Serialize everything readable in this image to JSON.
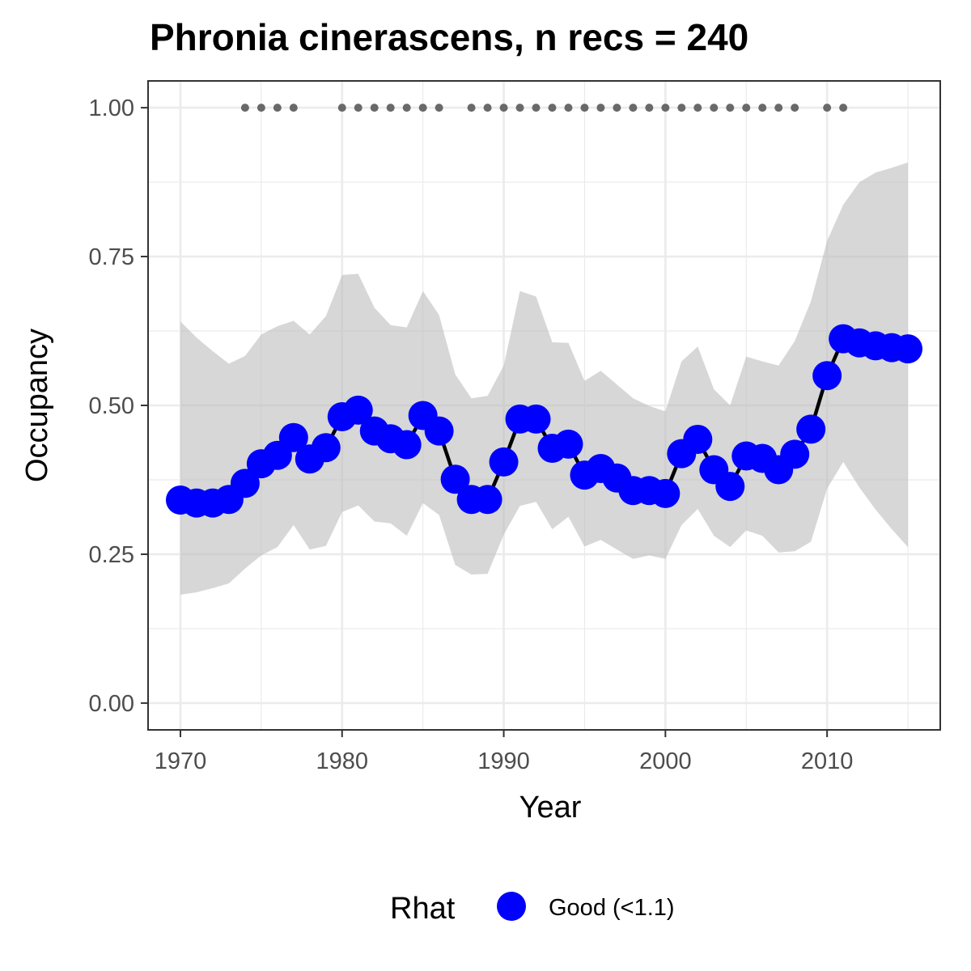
{
  "chart_data": {
    "type": "line",
    "title": "Phronia cinerascens, n recs = 240",
    "xlabel": "Year",
    "ylabel": "Occupancy",
    "xlim": [
      1968,
      2017
    ],
    "ylim": [
      -0.045,
      1.045
    ],
    "x_ticks": [
      1970,
      1980,
      1990,
      2000,
      2010
    ],
    "x_tick_labels": [
      "1970",
      "1980",
      "1990",
      "2000",
      "2010"
    ],
    "y_ticks": [
      0,
      0.25,
      0.5,
      0.75,
      1
    ],
    "y_tick_labels": [
      "0.00",
      "0.25",
      "0.50",
      "0.75",
      "1.00"
    ],
    "grid": true,
    "colors": {
      "line": "#000000",
      "points": "#0000ff",
      "ribbon": "#bfbfbf",
      "record_dots": "#696969",
      "grid": "#ebebeb",
      "panel_border": "#333333"
    },
    "x": [
      1970,
      1971,
      1972,
      1973,
      1974,
      1975,
      1976,
      1977,
      1978,
      1979,
      1980,
      1981,
      1982,
      1983,
      1984,
      1985,
      1986,
      1987,
      1988,
      1989,
      1990,
      1991,
      1992,
      1993,
      1994,
      1995,
      1996,
      1997,
      1998,
      1999,
      2000,
      2001,
      2002,
      2003,
      2004,
      2005,
      2006,
      2007,
      2008,
      2009,
      2010,
      2011,
      2012,
      2013,
      2014,
      2015
    ],
    "series": [
      {
        "values": [
          0.341,
          0.336,
          0.336,
          0.342,
          0.369,
          0.402,
          0.416,
          0.446,
          0.41,
          0.429,
          0.481,
          0.492,
          0.457,
          0.444,
          0.434,
          0.483,
          0.457,
          0.376,
          0.342,
          0.342,
          0.405,
          0.477,
          0.477,
          0.428,
          0.435,
          0.383,
          0.394,
          0.378,
          0.357,
          0.357,
          0.352,
          0.419,
          0.443,
          0.392,
          0.364,
          0.415,
          0.411,
          0.392,
          0.418,
          0.46,
          0.55,
          0.612,
          0.605,
          0.6,
          0.597,
          0.595
        ],
        "lower": [
          0.182,
          0.186,
          0.193,
          0.201,
          0.226,
          0.248,
          0.262,
          0.299,
          0.258,
          0.264,
          0.321,
          0.332,
          0.305,
          0.302,
          0.281,
          0.336,
          0.316,
          0.232,
          0.216,
          0.217,
          0.283,
          0.331,
          0.338,
          0.292,
          0.313,
          0.263,
          0.274,
          0.258,
          0.242,
          0.248,
          0.242,
          0.299,
          0.326,
          0.281,
          0.262,
          0.29,
          0.281,
          0.253,
          0.255,
          0.271,
          0.36,
          0.405,
          0.362,
          0.325,
          0.292,
          0.262
        ],
        "upper": [
          0.641,
          0.614,
          0.591,
          0.57,
          0.583,
          0.619,
          0.633,
          0.642,
          0.619,
          0.65,
          0.719,
          0.721,
          0.664,
          0.635,
          0.631,
          0.692,
          0.652,
          0.552,
          0.512,
          0.516,
          0.567,
          0.692,
          0.683,
          0.606,
          0.605,
          0.541,
          0.558,
          0.535,
          0.512,
          0.499,
          0.49,
          0.574,
          0.599,
          0.527,
          0.5,
          0.582,
          0.574,
          0.567,
          0.608,
          0.675,
          0.776,
          0.837,
          0.875,
          0.891,
          0.899,
          0.908
        ]
      }
    ],
    "record_years": [
      1974,
      1975,
      1976,
      1977,
      1980,
      1981,
      1982,
      1983,
      1984,
      1985,
      1986,
      1988,
      1989,
      1990,
      1991,
      1992,
      1993,
      1994,
      1995,
      1996,
      1997,
      1998,
      1999,
      2000,
      2001,
      2002,
      2003,
      2004,
      2005,
      2006,
      2007,
      2008,
      2010,
      2011
    ],
    "record_y": 1.0,
    "legend": {
      "title": "Rhat",
      "entries": [
        "Good (<1.1)"
      ],
      "position": "bottom"
    }
  }
}
